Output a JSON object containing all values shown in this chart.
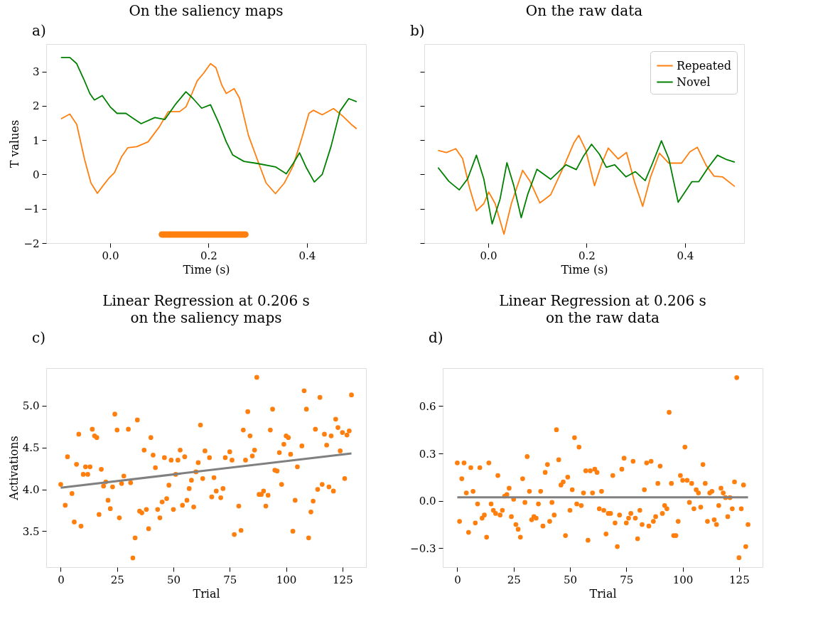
{
  "chart_data": [
    {
      "type": "line",
      "title": "On the saliency maps",
      "annotations": [
        "a)"
      ],
      "xlabel": "Time (s)",
      "ylabel": "T values",
      "xlim": [
        -0.13,
        0.52
      ],
      "xticks": [
        {
          "value": 0,
          "label": "0.0"
        },
        0.2,
        0.4
      ],
      "ylim": [
        -2,
        3.8
      ],
      "yticks": [
        {
          "value": -2,
          "label": "−2"
        },
        {
          "value": -1,
          "label": "−1"
        },
        0,
        1,
        2,
        3
      ],
      "marker": "none",
      "series": [
        {
          "color": "#ff7f0e",
          "x": [
            -0.1,
            -0.082,
            -0.068,
            -0.052,
            -0.039,
            -0.026,
            -0.014,
            -0.002,
            0.009,
            0.023,
            0.036,
            0.054,
            0.077,
            0.1,
            0.118,
            0.141,
            0.154,
            0.166,
            0.177,
            0.19,
            0.204,
            0.215,
            0.227,
            0.236,
            0.252,
            0.263,
            0.281,
            0.299,
            0.317,
            0.336,
            0.354,
            0.372,
            0.39,
            0.404,
            0.413,
            0.431,
            0.454,
            0.472,
            0.49,
            0.501
          ],
          "values": [
            1.62,
            1.76,
            1.46,
            0.44,
            -0.25,
            -0.55,
            -0.32,
            -0.1,
            0.06,
            0.51,
            0.78,
            0.81,
            0.95,
            1.39,
            1.83,
            1.83,
            1.97,
            2.35,
            2.73,
            2.95,
            3.23,
            3.11,
            2.6,
            2.36,
            2.5,
            2.22,
            1.14,
            0.44,
            -0.25,
            -0.56,
            -0.25,
            0.25,
            1.08,
            1.78,
            1.87,
            1.74,
            1.92,
            1.71,
            1.46,
            1.33
          ]
        },
        {
          "color": "#008000",
          "x": [
            -0.1,
            -0.082,
            -0.068,
            -0.054,
            -0.041,
            -0.032,
            -0.016,
            0.0,
            0.014,
            0.032,
            0.045,
            0.063,
            0.091,
            0.111,
            0.132,
            0.154,
            0.168,
            0.186,
            0.204,
            0.222,
            0.236,
            0.249,
            0.272,
            0.299,
            0.336,
            0.358,
            0.372,
            0.385,
            0.399,
            0.415,
            0.431,
            0.449,
            0.467,
            0.485,
            0.501
          ],
          "values": [
            3.41,
            3.41,
            3.23,
            2.79,
            2.35,
            2.17,
            2.3,
            1.97,
            1.78,
            1.78,
            1.65,
            1.48,
            1.66,
            1.6,
            2.03,
            2.41,
            2.22,
            1.93,
            2.03,
            1.46,
            0.95,
            0.57,
            0.38,
            0.32,
            0.22,
            0.02,
            0.32,
            0.63,
            0.19,
            -0.22,
            0.0,
            0.82,
            1.84,
            2.21,
            2.12
          ]
        },
        {
          "color": "#ff7f0e",
          "x": [
            0.105,
            0.275
          ],
          "values": [
            -1.75,
            -1.75
          ]
        }
      ]
    },
    {
      "type": "line",
      "title": "On the raw data",
      "annotations": [
        "b)"
      ],
      "xlabel": "Time (s)",
      "xlim": [
        -0.13,
        0.52
      ],
      "xticks": [
        {
          "value": 0,
          "label": "0.0"
        },
        0.2,
        0.4
      ],
      "ylim": [
        -2,
        3.8
      ],
      "yticks": [
        -2,
        -1,
        0,
        1,
        2,
        3
      ],
      "tick_labels": "x",
      "legend": "top right",
      "marker": "none",
      "series": [
        {
          "name": "Repeated",
          "color": "#ff7f0e",
          "x": [
            -0.102,
            -0.085,
            -0.066,
            -0.052,
            -0.038,
            -0.024,
            -0.009,
            0.001,
            0.014,
            0.032,
            0.047,
            0.07,
            0.085,
            0.105,
            0.127,
            0.155,
            0.174,
            0.184,
            0.198,
            0.216,
            0.231,
            0.244,
            0.264,
            0.281,
            0.297,
            0.314,
            0.33,
            0.348,
            0.367,
            0.393,
            0.41,
            0.425,
            0.443,
            0.459,
            0.476,
            0.501
          ],
          "values": [
            0.7,
            0.64,
            0.75,
            0.46,
            -0.39,
            -1.06,
            -0.85,
            -0.51,
            -0.85,
            -1.74,
            -0.85,
            0.12,
            -0.2,
            -0.83,
            -0.59,
            0.28,
            0.92,
            1.14,
            0.72,
            -0.33,
            0.33,
            0.77,
            0.45,
            0.64,
            -0.2,
            -0.93,
            -0.07,
            0.62,
            0.33,
            0.33,
            0.66,
            0.79,
            0.26,
            -0.05,
            -0.07,
            -0.35
          ]
        },
        {
          "name": "Novel",
          "color": "#008000",
          "x": [
            -0.102,
            -0.08,
            -0.059,
            -0.042,
            -0.024,
            -0.009,
            0.008,
            0.024,
            0.038,
            0.052,
            0.067,
            0.08,
            0.099,
            0.127,
            0.158,
            0.179,
            0.193,
            0.21,
            0.226,
            0.24,
            0.257,
            0.28,
            0.299,
            0.319,
            0.334,
            0.352,
            0.367,
            0.386,
            0.414,
            0.428,
            0.447,
            0.466,
            0.485,
            0.501
          ],
          "values": [
            0.2,
            -0.2,
            -0.45,
            -0.13,
            0.56,
            -0.13,
            -1.44,
            -0.72,
            0.34,
            -0.33,
            -1.26,
            -0.59,
            0.15,
            -0.14,
            0.28,
            0.14,
            0.52,
            0.88,
            0.59,
            0.21,
            0.28,
            -0.07,
            0.08,
            -0.18,
            0.33,
            0.98,
            0.46,
            -0.81,
            -0.21,
            -0.21,
            0.2,
            0.56,
            0.43,
            0.36
          ]
        }
      ]
    },
    {
      "type": "scatter",
      "title": "Linear Regression at 0.206 s\non the saliency maps",
      "annotations": [
        "c)"
      ],
      "xlabel": "Trial",
      "ylabel": "Activations",
      "xlim": [
        -6.45,
        135.45
      ],
      "xticks": [
        0,
        25,
        50,
        75,
        100,
        125
      ],
      "ylim": [
        3.07,
        5.45
      ],
      "yticks": [
        3.5,
        {
          "value": 4,
          "label": "4.0"
        },
        4.5,
        {
          "value": 5,
          "label": "5.0"
        }
      ],
      "marker": "circle",
      "series": [
        {
          "color": "#ff7f0e",
          "x": [
            0,
            2,
            3,
            5,
            6,
            7,
            8,
            9,
            10,
            11,
            12,
            13,
            14,
            15,
            16,
            17,
            18,
            19,
            20,
            21,
            22,
            23,
            24,
            25,
            26,
            27,
            28,
            30,
            31,
            32,
            33,
            34,
            35,
            36,
            37,
            38,
            39,
            40,
            41,
            42,
            43,
            44,
            45,
            46,
            47,
            48,
            49,
            50,
            51,
            52,
            53,
            54,
            55,
            56,
            57,
            58,
            59,
            60,
            61,
            62,
            63,
            64,
            66,
            67,
            68,
            69,
            71,
            72,
            73,
            75,
            76,
            77,
            79,
            80,
            81,
            82,
            83,
            84,
            85,
            86,
            87,
            88,
            89,
            90,
            91,
            92,
            93,
            94,
            95,
            96,
            97,
            98,
            99,
            100,
            101,
            102,
            103,
            104,
            105,
            107,
            108,
            109,
            110,
            111,
            112,
            113,
            114,
            115,
            116,
            117,
            118,
            119,
            120,
            121,
            122,
            123,
            124,
            125,
            126,
            127,
            128,
            129
          ],
          "values": [
            4.06,
            3.81,
            4.39,
            3.95,
            3.61,
            4.3,
            4.66,
            3.56,
            4.18,
            4.27,
            4.18,
            4.27,
            4.72,
            4.64,
            4.62,
            3.7,
            4.24,
            4.04,
            4.09,
            3.87,
            3.77,
            4.03,
            4.9,
            4.71,
            3.66,
            4.07,
            4.16,
            4.72,
            4.08,
            3.18,
            3.42,
            4.83,
            3.74,
            3.72,
            4.47,
            3.76,
            3.53,
            4.62,
            4.41,
            4.26,
            3.76,
            3.66,
            3.85,
            4.38,
            3.89,
            4.05,
            4.35,
            3.76,
            4.18,
            4.35,
            4.47,
            3.81,
            4.39,
            3.87,
            4.01,
            4.11,
            3.79,
            4.21,
            4.32,
            4.77,
            4.13,
            4.46,
            4.38,
            3.91,
            4.14,
            3.98,
            3.9,
            4.01,
            4.38,
            4.45,
            4.35,
            3.46,
            3.8,
            3.51,
            4.71,
            4.35,
            4.93,
            4.64,
            4.4,
            4.47,
            5.34,
            3.94,
            3.94,
            3.98,
            3.8,
            3.93,
            4.71,
            4.96,
            4.23,
            4.22,
            4.44,
            4.06,
            4.54,
            4.64,
            4.62,
            4.42,
            3.5,
            3.87,
            4.27,
            4.52,
            5.18,
            4.96,
            3.42,
            3.73,
            3.86,
            4.72,
            4.0,
            5.1,
            4.06,
            4.66,
            4.53,
            4.03,
            4.64,
            3.98,
            4.84,
            4.74,
            4.46,
            4.68,
            4.13,
            4.65,
            4.7,
            5.13
          ]
        },
        {
          "type": "line",
          "marker": "none",
          "color": "#808080",
          "x": [
            0,
            129
          ],
          "values": [
            4.02,
            4.43
          ]
        }
      ]
    },
    {
      "type": "scatter",
      "title": "Linear Regression at 0.206 s\non the raw data",
      "annotations": [
        "d)"
      ],
      "xlabel": "Trial",
      "xlim": [
        -6.45,
        135.45
      ],
      "xticks": [
        0,
        25,
        50,
        75,
        100,
        125
      ],
      "ylim": [
        -0.42,
        0.84
      ],
      "yticks": [
        {
          "value": -0.3,
          "label": "−0.3"
        },
        {
          "value": 0,
          "label": "0.0"
        },
        0.3,
        0.6
      ],
      "marker": "circle",
      "series": [
        {
          "color": "#ff7f0e",
          "x": [
            0,
            1,
            2,
            3,
            4,
            5,
            6,
            7,
            8,
            9,
            10,
            11,
            12,
            13,
            14,
            15,
            16,
            17,
            18,
            19,
            20,
            21,
            22,
            23,
            24,
            25,
            26,
            27,
            28,
            29,
            30,
            31,
            32,
            33,
            34,
            35,
            36,
            37,
            38,
            39,
            40,
            41,
            42,
            43,
            44,
            45,
            46,
            47,
            48,
            49,
            50,
            51,
            52,
            53,
            54,
            55,
            56,
            57,
            58,
            59,
            60,
            61,
            62,
            63,
            64,
            65,
            66,
            67,
            68,
            69,
            70,
            71,
            72,
            73,
            74,
            75,
            76,
            77,
            78,
            79,
            80,
            81,
            82,
            83,
            84,
            85,
            86,
            87,
            88,
            89,
            90,
            91,
            92,
            93,
            94,
            95,
            96,
            97,
            98,
            99,
            100,
            101,
            102,
            103,
            104,
            105,
            106,
            107,
            108,
            109,
            110,
            111,
            112,
            113,
            114,
            115,
            116,
            117,
            118,
            119,
            120,
            121,
            122,
            123,
            124,
            125,
            126,
            127,
            128,
            129
          ],
          "values": [
            0.24,
            -0.13,
            0.14,
            0.24,
            0.05,
            -0.2,
            0.21,
            0.06,
            -0.14,
            -0.02,
            0.21,
            -0.11,
            -0.09,
            -0.23,
            0.24,
            -0.02,
            -0.06,
            -0.08,
            0.16,
            -0.09,
            -0.06,
            0.03,
            0.04,
            0.08,
            -0.1,
            0.01,
            -0.15,
            -0.18,
            -0.23,
            0.14,
            -0.01,
            0.28,
            0.06,
            -0.12,
            -0.1,
            -0.11,
            -0.02,
            0.06,
            -0.16,
            0.18,
            0.23,
            -0.13,
            -0.01,
            -0.09,
            0.45,
            0.26,
            0.1,
            0.12,
            -0.22,
            0.15,
            -0.06,
            0.07,
            0.4,
            -0.02,
            0.34,
            -0.03,
            0.05,
            0.19,
            -0.25,
            0.19,
            0.05,
            0.2,
            0.18,
            -0.05,
            0.06,
            -0.06,
            -0.21,
            -0.08,
            -0.08,
            0.16,
            -0.14,
            -0.29,
            -0.09,
            0.2,
            0.27,
            -0.14,
            -0.11,
            -0.08,
            0.25,
            -0.11,
            -0.24,
            -0.06,
            -0.15,
            0.07,
            0.24,
            -0.16,
            0.25,
            -0.13,
            -0.1,
            0.11,
            0.22,
            -0.08,
            -0.03,
            -0.05,
            0.56,
            0.11,
            -0.22,
            -0.22,
            -0.13,
            0.16,
            0.13,
            0.34,
            0.13,
            -0.01,
            0.11,
            -0.05,
            0.07,
            0.05,
            -0.04,
            0.23,
            0.11,
            -0.13,
            0.05,
            0.06,
            -0.12,
            -0.15,
            -0.03,
            0.08,
            0.05,
            0.02,
            -0.1,
            0.02,
            -0.05,
            0.12,
            0.78,
            -0.36,
            -0.05,
            0.1,
            -0.29,
            -0.15
          ]
        },
        {
          "type": "line",
          "marker": "none",
          "color": "#808080",
          "x": [
            0,
            129
          ],
          "values": [
            0.022,
            0.022
          ]
        }
      ]
    }
  ]
}
